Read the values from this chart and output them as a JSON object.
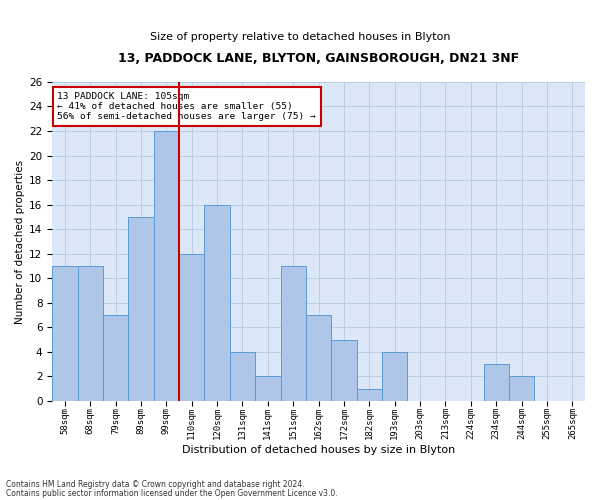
{
  "title1": "13, PADDOCK LANE, BLYTON, GAINSBOROUGH, DN21 3NF",
  "title2": "Size of property relative to detached houses in Blyton",
  "xlabel": "Distribution of detached houses by size in Blyton",
  "ylabel": "Number of detached properties",
  "bar_labels": [
    "58sqm",
    "68sqm",
    "79sqm",
    "89sqm",
    "99sqm",
    "110sqm",
    "120sqm",
    "131sqm",
    "141sqm",
    "151sqm",
    "162sqm",
    "172sqm",
    "182sqm",
    "193sqm",
    "203sqm",
    "213sqm",
    "224sqm",
    "234sqm",
    "244sqm",
    "255sqm",
    "265sqm"
  ],
  "bar_values": [
    11,
    11,
    7,
    15,
    22,
    12,
    16,
    4,
    2,
    11,
    7,
    5,
    1,
    4,
    0,
    0,
    0,
    3,
    2,
    0,
    0
  ],
  "bar_color": "#aec6e8",
  "bar_edge_color": "#5b9bd5",
  "vline_x": 4.5,
  "vline_color": "#cc0000",
  "annotation_lines": [
    "13 PADDOCK LANE: 105sqm",
    "← 41% of detached houses are smaller (55)",
    "56% of semi-detached houses are larger (75) →"
  ],
  "annotation_box_color": "#cc0000",
  "ylim": [
    0,
    26
  ],
  "yticks": [
    0,
    2,
    4,
    6,
    8,
    10,
    12,
    14,
    16,
    18,
    20,
    22,
    24,
    26
  ],
  "grid_color": "#b8cfe8",
  "background_color": "#dce8f8",
  "footnote1": "Contains HM Land Registry data © Crown copyright and database right 2024.",
  "footnote2": "Contains public sector information licensed under the Open Government Licence v3.0."
}
